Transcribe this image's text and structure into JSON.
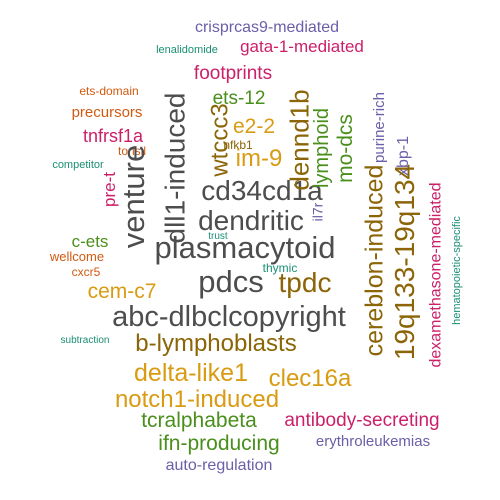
{
  "colors": {
    "dark_gray": "#4d4d4d",
    "brown": "#8b6508",
    "olive_green": "#4a8f1c",
    "magenta": "#cc1f6a",
    "purple": "#6b5fa8",
    "orange": "#d25a10",
    "teal": "#1a8f72",
    "gold": "#d99b12"
  },
  "words": [
    {
      "text": "crisprcas9-mediated",
      "color": "purple"
    },
    {
      "text": "lenalidomide",
      "color": "teal"
    },
    {
      "text": "gata-1-mediated",
      "color": "magenta"
    },
    {
      "text": "footprints",
      "color": "magenta"
    },
    {
      "text": "ets-domain",
      "color": "orange"
    },
    {
      "text": "precursors",
      "color": "orange"
    },
    {
      "text": "ets-12",
      "color": "olive_green"
    },
    {
      "text": "e2-2",
      "color": "gold"
    },
    {
      "text": "tnfrsf1a",
      "color": "magenta"
    },
    {
      "text": "tonsil",
      "color": "orange"
    },
    {
      "text": "nfkb1",
      "color": "brown"
    },
    {
      "text": "competitor",
      "color": "teal"
    },
    {
      "text": "im-9",
      "color": "gold"
    },
    {
      "text": "cd34cd1a",
      "color": "dark_gray"
    },
    {
      "text": "dendritic",
      "color": "dark_gray"
    },
    {
      "text": "pre-t",
      "color": "magenta"
    },
    {
      "text": "trust",
      "color": "teal"
    },
    {
      "text": "c-ets",
      "color": "olive_green"
    },
    {
      "text": "wellcome",
      "color": "orange"
    },
    {
      "text": "plasmacytoid",
      "color": "dark_gray"
    },
    {
      "text": "cxcr5",
      "color": "orange"
    },
    {
      "text": "cem-c7",
      "color": "gold"
    },
    {
      "text": "pdcs",
      "color": "dark_gray"
    },
    {
      "text": "tpdc",
      "color": "brown"
    },
    {
      "text": "abc-dlbclcopyright",
      "color": "dark_gray"
    },
    {
      "text": "thymic",
      "color": "teal"
    },
    {
      "text": "subtraction",
      "color": "teal"
    },
    {
      "text": "b-lymphoblasts",
      "color": "brown"
    },
    {
      "text": "delta-like1",
      "color": "gold"
    },
    {
      "text": "clec16a",
      "color": "gold"
    },
    {
      "text": "notch1-induced",
      "color": "gold"
    },
    {
      "text": "tcralphabeta",
      "color": "olive_green"
    },
    {
      "text": "antibody-secreting",
      "color": "magenta"
    },
    {
      "text": "ifn-producing",
      "color": "olive_green"
    },
    {
      "text": "erythroleukemias",
      "color": "purple"
    },
    {
      "text": "auto-regulation",
      "color": "purple"
    },
    {
      "text": "venture",
      "color": "dark_gray"
    },
    {
      "text": "dll1-induced",
      "color": "dark_gray"
    },
    {
      "text": "wtccc3",
      "color": "brown"
    },
    {
      "text": "dennd1b",
      "color": "brown"
    },
    {
      "text": "lymphoid",
      "color": "olive_green"
    },
    {
      "text": "mo-dcs",
      "color": "olive_green"
    },
    {
      "text": "purine-rich",
      "color": "purple"
    },
    {
      "text": "xbp-1",
      "color": "purple"
    },
    {
      "text": "il7r",
      "color": "purple"
    },
    {
      "text": "cereblon-induced",
      "color": "brown"
    },
    {
      "text": "19q133-19q134",
      "color": "brown"
    },
    {
      "text": "dexamethasone-mediated",
      "color": "magenta"
    },
    {
      "text": "hematopoietic-specific",
      "color": "teal"
    }
  ]
}
